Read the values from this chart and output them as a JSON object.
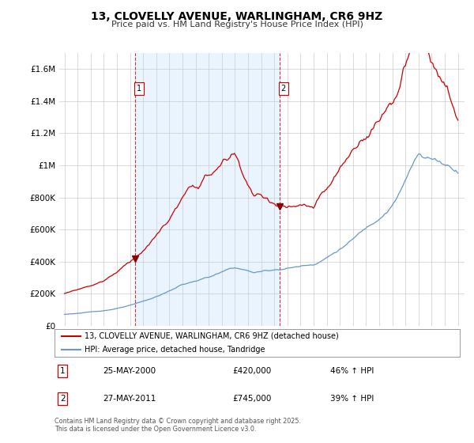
{
  "title": "13, CLOVELLY AVENUE, WARLINGHAM, CR6 9HZ",
  "subtitle": "Price paid vs. HM Land Registry's House Price Index (HPI)",
  "ytick_labels": [
    "£0",
    "£200K",
    "£400K",
    "£600K",
    "£800K",
    "£1M",
    "£1.2M",
    "£1.4M",
    "£1.6M"
  ],
  "yticks": [
    0,
    200000,
    400000,
    600000,
    800000,
    1000000,
    1200000,
    1400000,
    1600000
  ],
  "ylim": [
    0,
    1700000
  ],
  "line1_color": "#cc0000",
  "line2_color": "#6699cc",
  "vline_color": "#cc0000",
  "shade_color": "#ddeeff",
  "legend_label1": "13, CLOVELLY AVENUE, WARLINGHAM, CR6 9HZ (detached house)",
  "legend_label2": "HPI: Average price, detached house, Tandridge",
  "purchase1_year": 2000.38,
  "purchase1_price_val": 420000,
  "purchase2_year": 2011.38,
  "purchase2_price_val": 745000,
  "purchase1_date": "25-MAY-2000",
  "purchase1_price": "£420,000",
  "purchase1_hpi": "46% ↑ HPI",
  "purchase2_date": "27-MAY-2011",
  "purchase2_price": "£745,000",
  "purchase2_hpi": "39% ↑ HPI",
  "footer": "Contains HM Land Registry data © Crown copyright and database right 2025.\nThis data is licensed under the Open Government Licence v3.0.",
  "bg_color": "#ffffff",
  "plot_bg_color": "#ffffff",
  "grid_color": "#cccccc"
}
